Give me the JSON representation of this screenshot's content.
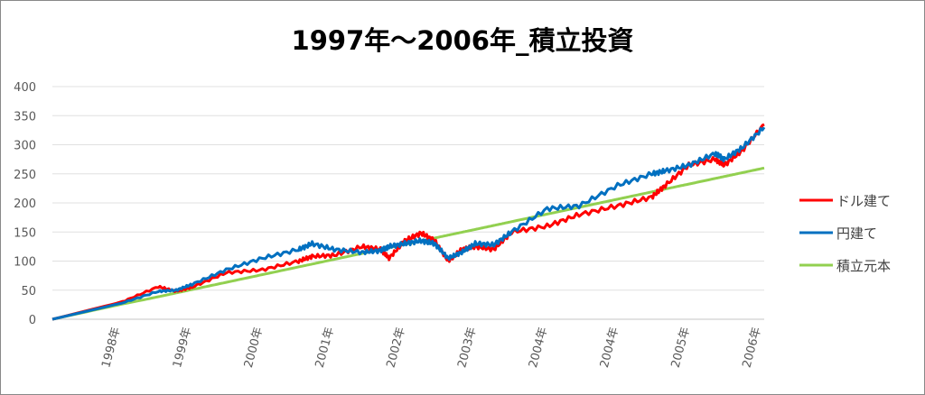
{
  "chart_data": {
    "type": "line",
    "title": "1997年～2006年_積立投資",
    "xlabel": "",
    "ylabel": "",
    "ylim": [
      0,
      400
    ],
    "yticks": [
      0,
      50,
      100,
      150,
      200,
      250,
      300,
      350,
      400
    ],
    "xlim": [
      0,
      10
    ],
    "xtick_labels": [
      "1998年",
      "1999年",
      "2000年",
      "2001年",
      "2002年",
      "2003年",
      "2004年",
      "2004年",
      "2005年",
      "2006年"
    ],
    "grid": true,
    "legend_position": "right",
    "x_years_elapsed": [
      0,
      0.98,
      1.49,
      1.74,
      1.96,
      2.44,
      2.95,
      3.46,
      3.65,
      3.96,
      4.35,
      4.61,
      4.73,
      4.95,
      5.18,
      5.37,
      5.56,
      5.75,
      5.94,
      6.2,
      6.45,
      6.95,
      7.4,
      7.94,
      8.42,
      8.61,
      8.94,
      9.31,
      9.44,
      9.69,
      10
    ],
    "series": [
      {
        "name": "ドル建て",
        "color": "#ff0000",
        "values": [
          0,
          30,
          56,
          48,
          55,
          80,
          85,
          100,
          108,
          110,
          125,
          120,
          105,
          135,
          148,
          135,
          100,
          120,
          125,
          120,
          150,
          160,
          180,
          195,
          210,
          230,
          265,
          275,
          265,
          290,
          335
        ]
      },
      {
        "name": "円建て",
        "color": "#0070c0",
        "values": [
          0,
          28,
          48,
          50,
          60,
          85,
          105,
          120,
          130,
          120,
          115,
          118,
          125,
          130,
          135,
          130,
          105,
          115,
          130,
          128,
          150,
          190,
          195,
          230,
          250,
          255,
          265,
          285,
          275,
          295,
          330
        ]
      },
      {
        "name": "積立元本",
        "color": "#92d050",
        "values": [
          0,
          26,
          38.7,
          45.2,
          51,
          63.4,
          76.7,
          90,
          94.9,
          103,
          113.1,
          119.9,
          123,
          128.7,
          134.7,
          139.6,
          144.6,
          149.5,
          154.4,
          161.2,
          167.7,
          180.7,
          192.4,
          206.4,
          218.9,
          223.9,
          232.4,
          242,
          245.4,
          251.9,
          260
        ]
      }
    ]
  }
}
